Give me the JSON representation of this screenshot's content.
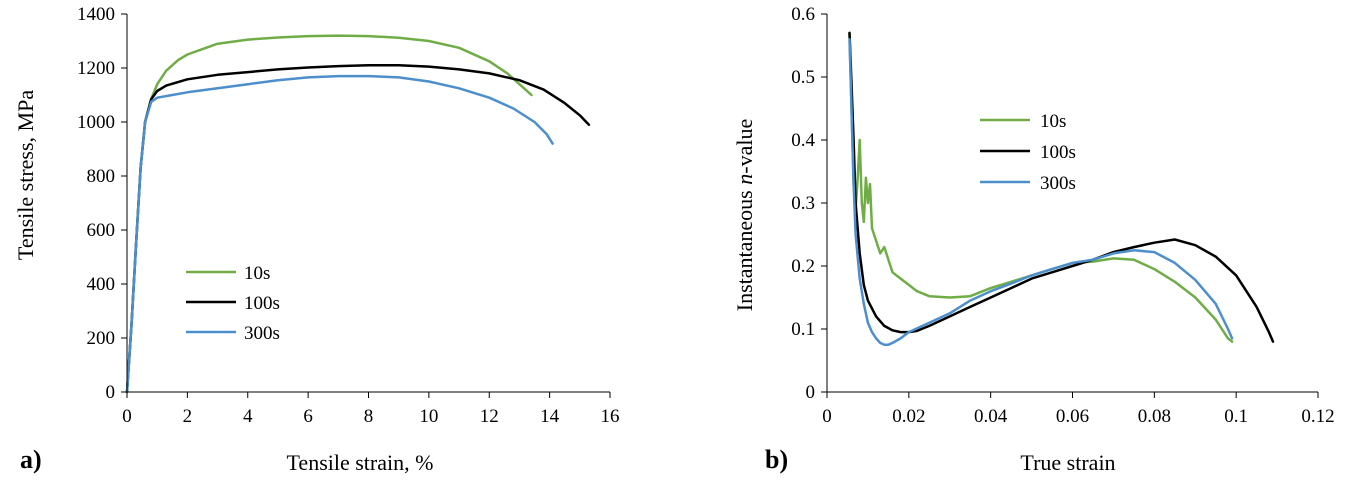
{
  "chart_data": [
    {
      "type": "line",
      "panel_label": "a)",
      "xlabel": "Tensile strain, %",
      "ylabel": "Tensile stress, MPa",
      "xlim": [
        0,
        16
      ],
      "ylim": [
        0,
        1400
      ],
      "xticks": [
        "0",
        "2",
        "4",
        "6",
        "8",
        "10",
        "12",
        "14",
        "16"
      ],
      "yticks": [
        "0",
        "200",
        "400",
        "600",
        "800",
        "1000",
        "1200",
        "1400"
      ],
      "legend_position": "center-left",
      "series": [
        {
          "name": "10s",
          "color": "#70ad47",
          "points": [
            [
              0,
              0
            ],
            [
              0.15,
              250
            ],
            [
              0.3,
              550
            ],
            [
              0.45,
              830
            ],
            [
              0.6,
              1000
            ],
            [
              0.8,
              1085
            ],
            [
              1.0,
              1140
            ],
            [
              1.3,
              1190
            ],
            [
              1.7,
              1230
            ],
            [
              2,
              1250
            ],
            [
              3,
              1290
            ],
            [
              4,
              1305
            ],
            [
              5,
              1313
            ],
            [
              6,
              1318
            ],
            [
              7,
              1320
            ],
            [
              8,
              1318
            ],
            [
              9,
              1312
            ],
            [
              10,
              1300
            ],
            [
              11,
              1275
            ],
            [
              12,
              1225
            ],
            [
              12.6,
              1180
            ],
            [
              13.1,
              1130
            ],
            [
              13.4,
              1100
            ]
          ]
        },
        {
          "name": "100s",
          "color": "#000000",
          "points": [
            [
              0,
              0
            ],
            [
              0.15,
              250
            ],
            [
              0.3,
              550
            ],
            [
              0.45,
              830
            ],
            [
              0.6,
              1000
            ],
            [
              0.8,
              1085
            ],
            [
              1.0,
              1115
            ],
            [
              1.3,
              1135
            ],
            [
              2,
              1158
            ],
            [
              3,
              1175
            ],
            [
              4,
              1185
            ],
            [
              5,
              1195
            ],
            [
              6,
              1202
            ],
            [
              7,
              1207
            ],
            [
              8,
              1210
            ],
            [
              9,
              1210
            ],
            [
              10,
              1205
            ],
            [
              11,
              1195
            ],
            [
              12,
              1180
            ],
            [
              13,
              1155
            ],
            [
              13.8,
              1120
            ],
            [
              14.5,
              1070
            ],
            [
              15,
              1025
            ],
            [
              15.3,
              990
            ]
          ]
        },
        {
          "name": "300s",
          "color": "#4d8fcc",
          "points": [
            [
              0,
              0
            ],
            [
              0.15,
              250
            ],
            [
              0.3,
              550
            ],
            [
              0.45,
              830
            ],
            [
              0.6,
              1000
            ],
            [
              0.8,
              1075
            ],
            [
              1.0,
              1090
            ],
            [
              1.5,
              1100
            ],
            [
              2,
              1110
            ],
            [
              3,
              1125
            ],
            [
              4,
              1140
            ],
            [
              5,
              1155
            ],
            [
              6,
              1165
            ],
            [
              7,
              1170
            ],
            [
              8,
              1170
            ],
            [
              9,
              1165
            ],
            [
              10,
              1150
            ],
            [
              11,
              1125
            ],
            [
              12,
              1090
            ],
            [
              12.8,
              1050
            ],
            [
              13.5,
              1000
            ],
            [
              13.9,
              955
            ],
            [
              14.1,
              920
            ]
          ]
        }
      ]
    },
    {
      "type": "line",
      "panel_label": "b)",
      "xlabel": "True strain",
      "ylabel_pre": "Instantaneous ",
      "ylabel_italic": "n",
      "ylabel_post": "-value",
      "xlim": [
        0,
        0.12
      ],
      "ylim": [
        0,
        0.6
      ],
      "xticks": [
        "0",
        "0.02",
        "0.04",
        "0.06",
        "0.08",
        "0.1",
        "0.12"
      ],
      "yticks": [
        "0",
        "0.1",
        "0.2",
        "0.3",
        "0.4",
        "0.5",
        "0.6"
      ],
      "legend_position": "top-center",
      "series": [
        {
          "name": "10s",
          "color": "#70ad47",
          "points": [
            [
              0.0055,
              0.57
            ],
            [
              0.006,
              0.45
            ],
            [
              0.0065,
              0.33
            ],
            [
              0.007,
              0.29
            ],
            [
              0.0075,
              0.34
            ],
            [
              0.008,
              0.4
            ],
            [
              0.0085,
              0.3
            ],
            [
              0.009,
              0.27
            ],
            [
              0.0095,
              0.34
            ],
            [
              0.01,
              0.3
            ],
            [
              0.0105,
              0.33
            ],
            [
              0.011,
              0.26
            ],
            [
              0.012,
              0.24
            ],
            [
              0.013,
              0.22
            ],
            [
              0.014,
              0.23
            ],
            [
              0.015,
              0.21
            ],
            [
              0.016,
              0.19
            ],
            [
              0.018,
              0.18
            ],
            [
              0.02,
              0.17
            ],
            [
              0.022,
              0.16
            ],
            [
              0.025,
              0.152
            ],
            [
              0.03,
              0.15
            ],
            [
              0.035,
              0.152
            ],
            [
              0.04,
              0.165
            ],
            [
              0.045,
              0.175
            ],
            [
              0.05,
              0.185
            ],
            [
              0.055,
              0.195
            ],
            [
              0.06,
              0.205
            ],
            [
              0.065,
              0.207
            ],
            [
              0.07,
              0.212
            ],
            [
              0.075,
              0.21
            ],
            [
              0.08,
              0.195
            ],
            [
              0.085,
              0.175
            ],
            [
              0.09,
              0.15
            ],
            [
              0.095,
              0.115
            ],
            [
              0.098,
              0.085
            ],
            [
              0.099,
              0.08
            ]
          ]
        },
        {
          "name": "100s",
          "color": "#000000",
          "points": [
            [
              0.0055,
              0.57
            ],
            [
              0.006,
              0.49
            ],
            [
              0.0065,
              0.4
            ],
            [
              0.007,
              0.3
            ],
            [
              0.008,
              0.22
            ],
            [
              0.009,
              0.17
            ],
            [
              0.01,
              0.145
            ],
            [
              0.012,
              0.12
            ],
            [
              0.014,
              0.105
            ],
            [
              0.016,
              0.098
            ],
            [
              0.018,
              0.095
            ],
            [
              0.02,
              0.095
            ],
            [
              0.022,
              0.097
            ],
            [
              0.025,
              0.105
            ],
            [
              0.03,
              0.12
            ],
            [
              0.035,
              0.135
            ],
            [
              0.04,
              0.15
            ],
            [
              0.045,
              0.165
            ],
            [
              0.05,
              0.18
            ],
            [
              0.055,
              0.19
            ],
            [
              0.06,
              0.2
            ],
            [
              0.065,
              0.21
            ],
            [
              0.07,
              0.222
            ],
            [
              0.075,
              0.23
            ],
            [
              0.08,
              0.237
            ],
            [
              0.085,
              0.242
            ],
            [
              0.09,
              0.233
            ],
            [
              0.095,
              0.215
            ],
            [
              0.1,
              0.185
            ],
            [
              0.105,
              0.135
            ],
            [
              0.108,
              0.095
            ],
            [
              0.109,
              0.08
            ]
          ]
        },
        {
          "name": "300s",
          "color": "#4d8fcc",
          "points": [
            [
              0.0055,
              0.56
            ],
            [
              0.006,
              0.45
            ],
            [
              0.0065,
              0.33
            ],
            [
              0.007,
              0.25
            ],
            [
              0.008,
              0.18
            ],
            [
              0.009,
              0.14
            ],
            [
              0.01,
              0.11
            ],
            [
              0.011,
              0.095
            ],
            [
              0.012,
              0.085
            ],
            [
              0.013,
              0.078
            ],
            [
              0.014,
              0.075
            ],
            [
              0.015,
              0.075
            ],
            [
              0.016,
              0.078
            ],
            [
              0.018,
              0.085
            ],
            [
              0.02,
              0.095
            ],
            [
              0.025,
              0.11
            ],
            [
              0.03,
              0.125
            ],
            [
              0.035,
              0.145
            ],
            [
              0.04,
              0.16
            ],
            [
              0.045,
              0.172
            ],
            [
              0.05,
              0.185
            ],
            [
              0.055,
              0.195
            ],
            [
              0.06,
              0.205
            ],
            [
              0.065,
              0.21
            ],
            [
              0.07,
              0.22
            ],
            [
              0.075,
              0.225
            ],
            [
              0.08,
              0.222
            ],
            [
              0.085,
              0.205
            ],
            [
              0.09,
              0.178
            ],
            [
              0.095,
              0.14
            ],
            [
              0.098,
              0.1
            ],
            [
              0.099,
              0.085
            ]
          ]
        }
      ]
    }
  ]
}
